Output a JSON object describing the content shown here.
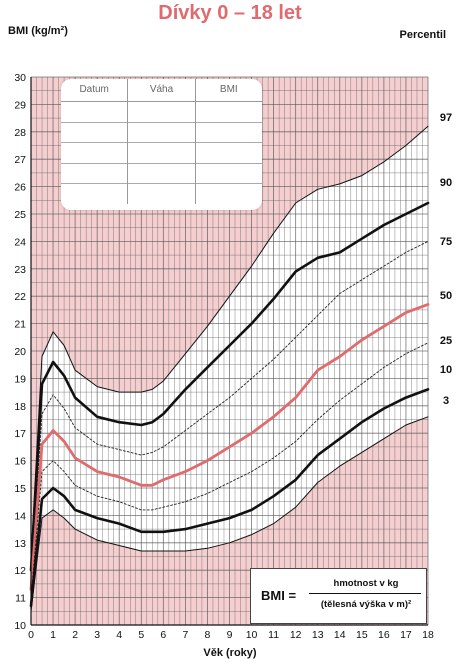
{
  "page": {
    "title": "Dívky 0 – 18 let",
    "percentil_label": "Percentil"
  },
  "record_table": {
    "headers": [
      "Datum",
      "Váha",
      "BMI"
    ],
    "rows": 5
  },
  "formula": {
    "lhs": "BMI =",
    "numerator": "hmotnost v kg",
    "denominator": "(tělesná výška v m)²"
  },
  "colors": {
    "accent": "#e06b6e",
    "pink_background": "#f5cfd0",
    "band_fill": "#ffffff",
    "curve": "#111111"
  },
  "chart_data": {
    "type": "line",
    "title": "Dívky 0 – 18 let",
    "xlabel": "Věk (roky)",
    "ylabel": "BMI (kg/m²)",
    "xlim": [
      0,
      18
    ],
    "ylim": [
      10,
      30
    ],
    "x_ticks": [
      0,
      1,
      2,
      3,
      4,
      5,
      6,
      7,
      8,
      9,
      10,
      11,
      12,
      13,
      14,
      15,
      16,
      17,
      18
    ],
    "y_ticks": [
      10,
      11,
      12,
      13,
      14,
      15,
      16,
      17,
      18,
      19,
      20,
      21,
      22,
      23,
      24,
      25,
      26,
      27,
      28,
      29,
      30
    ],
    "grid": true,
    "x": [
      0,
      0.5,
      1,
      1.5,
      2,
      3,
      4,
      5,
      5.5,
      6,
      7,
      8,
      9,
      10,
      11,
      12,
      13,
      14,
      15,
      16,
      17,
      18
    ],
    "series": [
      {
        "name": "97",
        "style": "thin",
        "values": [
          12.5,
          19.8,
          20.7,
          20.2,
          19.3,
          18.7,
          18.5,
          18.5,
          18.6,
          18.9,
          19.9,
          20.9,
          22.0,
          23.1,
          24.3,
          25.4,
          25.9,
          26.1,
          26.4,
          26.9,
          27.5,
          28.2
        ]
      },
      {
        "name": "90",
        "style": "bold",
        "values": [
          12.0,
          18.8,
          19.6,
          19.1,
          18.3,
          17.6,
          17.4,
          17.3,
          17.4,
          17.7,
          18.6,
          19.4,
          20.2,
          21.0,
          21.9,
          22.9,
          23.4,
          23.6,
          24.1,
          24.6,
          25.0,
          25.4
        ]
      },
      {
        "name": "75",
        "style": "dotted",
        "values": [
          11.6,
          17.7,
          18.4,
          17.9,
          17.2,
          16.6,
          16.4,
          16.2,
          16.3,
          16.5,
          17.1,
          17.7,
          18.3,
          19.0,
          19.7,
          20.5,
          21.3,
          22.1,
          22.6,
          23.1,
          23.6,
          24.0
        ]
      },
      {
        "name": "50",
        "style": "accent",
        "values": [
          11.3,
          16.6,
          17.1,
          16.7,
          16.1,
          15.6,
          15.4,
          15.1,
          15.1,
          15.3,
          15.6,
          16.0,
          16.5,
          17.0,
          17.6,
          18.3,
          19.3,
          19.8,
          20.4,
          20.9,
          21.4,
          21.7
        ]
      },
      {
        "name": "25",
        "style": "dotted",
        "values": [
          11.0,
          15.6,
          16.0,
          15.6,
          15.1,
          14.7,
          14.5,
          14.2,
          14.2,
          14.3,
          14.5,
          14.8,
          15.2,
          15.6,
          16.1,
          16.7,
          17.5,
          18.2,
          18.8,
          19.4,
          19.9,
          20.3
        ]
      },
      {
        "name": "10",
        "style": "bold",
        "values": [
          10.7,
          14.6,
          15.0,
          14.7,
          14.2,
          13.9,
          13.7,
          13.4,
          13.4,
          13.4,
          13.5,
          13.7,
          13.9,
          14.2,
          14.7,
          15.3,
          16.2,
          16.8,
          17.4,
          17.9,
          18.3,
          18.6
        ]
      },
      {
        "name": "3",
        "style": "thin",
        "values": [
          10.5,
          13.9,
          14.2,
          13.9,
          13.5,
          13.1,
          12.9,
          12.7,
          12.7,
          12.7,
          12.7,
          12.8,
          13.0,
          13.3,
          13.7,
          14.3,
          15.2,
          15.8,
          16.3,
          16.8,
          17.3,
          17.6
        ]
      }
    ]
  }
}
